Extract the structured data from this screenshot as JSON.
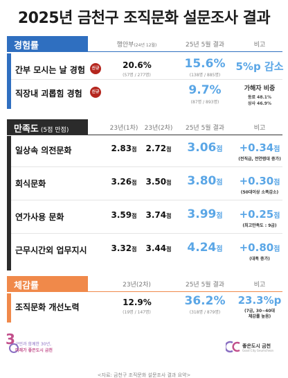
{
  "title": "2025년 금천구 조직문화 설문조사 결과",
  "sections": {
    "experience": {
      "label": "경험률",
      "headers": {
        "col1": "행안부",
        "col1_sub": "(24년 12월)",
        "col2": "25년 5월 결과",
        "col3": "비고"
      },
      "rows": [
        {
          "label": "간부 모시는 날 경험",
          "badge": "신규",
          "prev": "20.6%",
          "prev_sub": "(57명 / 277명)",
          "result": "15.6%",
          "result_sub": "(138명 / 885명)",
          "note_big": "5%p 감소"
        },
        {
          "label": "직장내 괴롭힘 경험",
          "badge": "신규",
          "result": "9.7%",
          "result_sub": "(87명 / 893명)",
          "note_title": "가해자 비중",
          "note_line1": "동료 48.1%",
          "note_line2": "상사 46.9%"
        }
      ]
    },
    "satisfaction": {
      "label": "만족도",
      "label_sub": "(5점 만점)",
      "headers": {
        "col1": "23년(1차)",
        "col2": "23년(2차)",
        "col3": "25년 5월 결과",
        "col4": "비고"
      },
      "unit": "점",
      "rows": [
        {
          "label": "일상속 의전문화",
          "v1": "2.83",
          "v2": "2.72",
          "result": "3.06",
          "delta": "+0.34",
          "note": "(전직급, 전연령대 증가)"
        },
        {
          "label": "회식문화",
          "v1": "3.26",
          "v2": "3.50",
          "result": "3.80",
          "delta": "+0.30",
          "note": "(50대이상 소폭감소)"
        },
        {
          "label": "연가사용 문화",
          "v1": "3.59",
          "v2": "3.74",
          "result": "3.99",
          "delta": "+0.25",
          "note": "(최고만족도 : 9급)"
        },
        {
          "label": "근무시간외 업무지시",
          "v1": "3.32",
          "v2": "3.44",
          "result": "4.24",
          "delta": "+0.80",
          "note": "(대폭 증가)"
        }
      ]
    },
    "perceived": {
      "label": "체감률",
      "headers": {
        "col1": "23년(2차)",
        "col2": "25년 5월 결과",
        "col3": "비고"
      },
      "rows": [
        {
          "label": "조직문화 개선노력",
          "prev": "12.9%",
          "prev_sub": "(19명 / 147명)",
          "result": "36.2%",
          "result_sub": "(318명 / 879명)",
          "delta": "23.3%p",
          "note": "(7급, 30~40대",
          "note2": "체감률 높음)"
        }
      ]
    }
  },
  "footer": {
    "left_line1": "구민과 함께한 30년,",
    "left_line2": "미래가 좋은도시 금천",
    "right_brand": "좋은도시 금천",
    "right_sub": "Good City Geumcheon",
    "caption": "<자료: 금천구 조직문화 설문조사 결과 요약>"
  },
  "colors": {
    "blue": "#2f6fc0",
    "dark": "#2b2b2b",
    "orange": "#f0894a",
    "accent": "#5aa6e6",
    "badge": "#b5261e"
  }
}
